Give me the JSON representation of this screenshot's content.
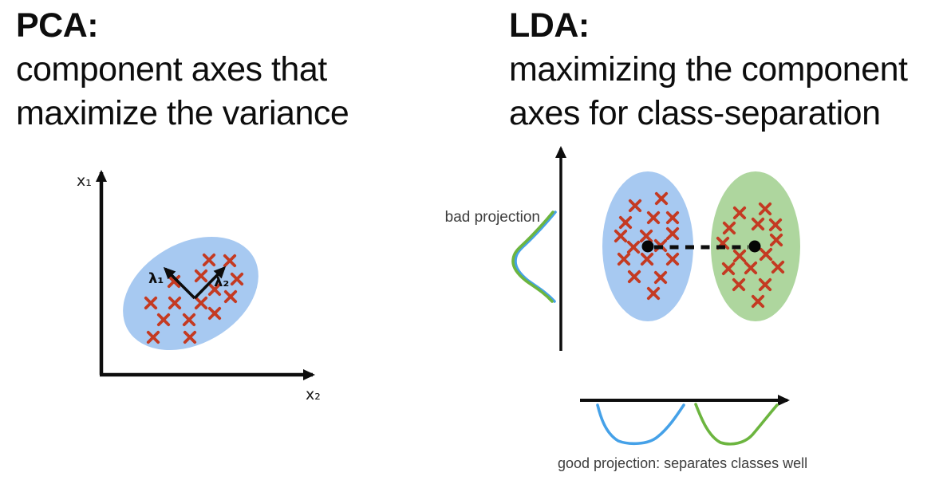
{
  "colors": {
    "class_blue_fill": "#a7c9f1",
    "class_green_fill": "#aed69e",
    "curve_blue": "#45a1e8",
    "curve_green": "#6cb53f",
    "marker_red": "#c43a22",
    "ink": "#0d0d0d",
    "muted_text": "#3c3c3c"
  },
  "pca": {
    "title": "PCA:",
    "line1": "component axes that",
    "line2": "maximize the variance",
    "y_axis_label": "x₁",
    "x_axis_label": "x₂",
    "lambda1": "λ₁",
    "lambda2": "λ₂",
    "points": [
      [
        262,
        326
      ],
      [
        288,
        327
      ],
      [
        252,
        346
      ],
      [
        297,
        350
      ],
      [
        218,
        353
      ],
      [
        269,
        363
      ],
      [
        289,
        372
      ],
      [
        189,
        380
      ],
      [
        219,
        380
      ],
      [
        252,
        380
      ],
      [
        269,
        393
      ],
      [
        205,
        401
      ],
      [
        237,
        401
      ],
      [
        192,
        423
      ],
      [
        238,
        423
      ]
    ]
  },
  "lda": {
    "title": "LDA:",
    "line1": "maximizing the component",
    "line2": "axes for class-separation",
    "bad_projection_label": "bad projection",
    "good_projection_label": "good projection: separates classes well",
    "class1_points": [
      [
        829,
        249
      ],
      [
        796,
        258
      ],
      [
        819,
        273
      ],
      [
        843,
        273
      ],
      [
        784,
        279
      ],
      [
        778,
        296
      ],
      [
        810,
        296
      ],
      [
        843,
        293
      ],
      [
        794,
        310
      ],
      [
        828,
        308
      ],
      [
        782,
        325
      ],
      [
        811,
        325
      ],
      [
        843,
        325
      ],
      [
        795,
        347
      ],
      [
        828,
        348
      ],
      [
        819,
        368
      ]
    ],
    "class2_points": [
      [
        959,
        262
      ],
      [
        927,
        267
      ],
      [
        950,
        281
      ],
      [
        972,
        282
      ],
      [
        914,
        286
      ],
      [
        906,
        305
      ],
      [
        973,
        301
      ],
      [
        927,
        321
      ],
      [
        960,
        319
      ],
      [
        913,
        337
      ],
      [
        941,
        336
      ],
      [
        975,
        335
      ],
      [
        926,
        357
      ],
      [
        959,
        357
      ],
      [
        950,
        378
      ]
    ],
    "class1_mean": [
      812,
      309
    ],
    "class2_mean": [
      946,
      309
    ]
  }
}
